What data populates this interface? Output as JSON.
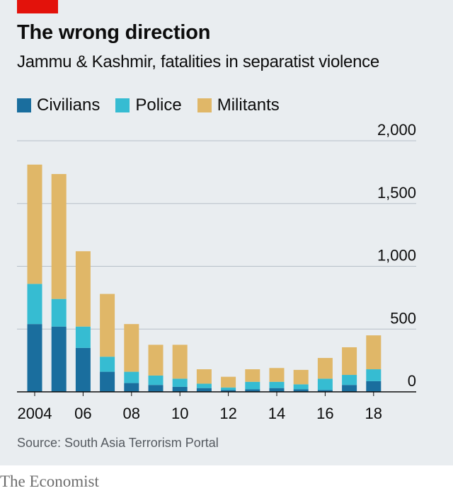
{
  "header": {
    "title": "The wrong direction",
    "subtitle": "Jammu & Kashmir, fatalities in separatist violence"
  },
  "legend": [
    {
      "label": "Civilians",
      "color": "#1a6e9e"
    },
    {
      "label": "Police",
      "color": "#36bcd2"
    },
    {
      "label": "Militants",
      "color": "#e0b768"
    }
  ],
  "footer": {
    "source": "Source: South Asia Terrorism Portal",
    "brand": "The Economist"
  },
  "chart_data": {
    "type": "bar",
    "stacked": true,
    "title": "The wrong direction",
    "subtitle": "Jammu & Kashmir, fatalities in separatist violence",
    "categories": [
      "2004",
      "2005",
      "2006",
      "2007",
      "2008",
      "2009",
      "2010",
      "2011",
      "2012",
      "2013",
      "2014",
      "2015",
      "2016",
      "2017",
      "2018"
    ],
    "x_tick_labels": [
      "2004",
      "06",
      "08",
      "10",
      "12",
      "14",
      "16",
      "18"
    ],
    "x_tick_categories": [
      "2004",
      "2006",
      "2008",
      "2010",
      "2012",
      "2014",
      "2016",
      "2018"
    ],
    "y_ticks": [
      0,
      500,
      1000,
      1500,
      2000
    ],
    "y_tick_labels": [
      "0",
      "500",
      "1,000",
      "1,500",
      "2,000"
    ],
    "ylim": [
      0,
      2000
    ],
    "y_axis_side": "right",
    "grid": true,
    "legend_position": "top-left",
    "series": [
      {
        "name": "Civilians",
        "color": "#1a6e9e",
        "values": [
          540,
          520,
          350,
          160,
          70,
          55,
          40,
          30,
          15,
          20,
          30,
          20,
          15,
          55,
          85
        ]
      },
      {
        "name": "Police",
        "color": "#36bcd2",
        "values": [
          320,
          220,
          170,
          120,
          90,
          75,
          65,
          35,
          20,
          60,
          50,
          40,
          90,
          80,
          95
        ]
      },
      {
        "name": "Militants",
        "color": "#e0b768",
        "values": [
          950,
          995,
          600,
          500,
          380,
          245,
          270,
          115,
          85,
          100,
          110,
          115,
          165,
          220,
          270
        ]
      }
    ]
  }
}
